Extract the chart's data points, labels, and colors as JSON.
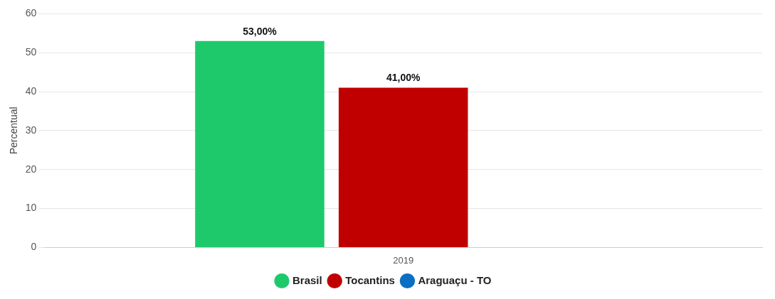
{
  "chart_data": {
    "type": "bar",
    "categories": [
      "2019"
    ],
    "ylabel": "Percentual",
    "ylim": [
      0,
      60
    ],
    "yticks": [
      0,
      10,
      20,
      30,
      40,
      50,
      60
    ],
    "grid": "y",
    "legend": "bottom",
    "series": [
      {
        "name": "Brasil",
        "color": "#1ec96c",
        "values": [
          53
        ],
        "value_labels": [
          "53,00%"
        ]
      },
      {
        "name": "Tocantins",
        "color": "#c00000",
        "values": [
          41
        ],
        "value_labels": [
          "41,00%"
        ]
      },
      {
        "name": "Araguaçu - TO",
        "color": "#0a6fc2",
        "values": [
          null
        ],
        "value_labels": [
          null
        ]
      }
    ]
  }
}
